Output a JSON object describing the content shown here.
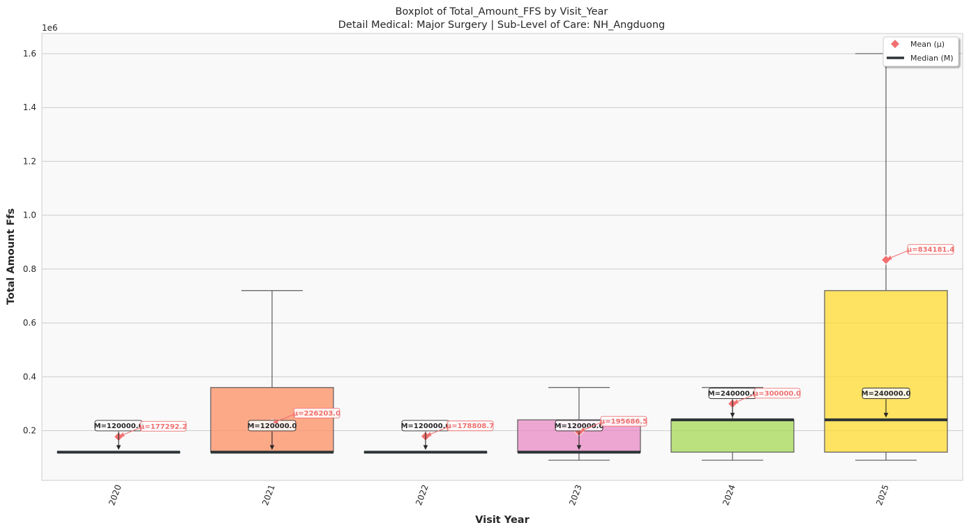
{
  "chart_data": {
    "type": "box",
    "title": "Boxplot of Total_Amount_FFS by Visit_Year",
    "subtitle": "Detail Medical: Major Surgery | Sub-Level of Care: NH_Angduong",
    "xlabel": "Visit Year",
    "ylabel": "Total Amount Ffs",
    "y_offset_label": "1e6",
    "ylim": [
      0.015,
      1.675
    ],
    "yticks": [
      0.2,
      0.4,
      0.6,
      0.8,
      1.0,
      1.2,
      1.4,
      1.6
    ],
    "yticklabels": [
      "0.2",
      "0.4",
      "0.6",
      "0.8",
      "1.0",
      "1.2",
      "1.4",
      "1.6"
    ],
    "grid": true,
    "legend_position": "top-right",
    "legend": [
      {
        "label": "Mean (μ)",
        "marker": "diamond",
        "color": "#f07070"
      },
      {
        "label": "Median (M)",
        "marker": "line",
        "color": "#2d3436"
      }
    ],
    "colors": {
      "background": "#f9f9f9",
      "grid": "#cccccc",
      "whisker": "#5a5a5a",
      "median": "#2d3436",
      "mean": "#f07070"
    },
    "boxes": [
      {
        "category": "2020",
        "whislo": 0.12,
        "q1": 0.12,
        "median": 0.12,
        "q3": 0.12,
        "whishi": 0.12,
        "mean": 0.1772922,
        "color": "#66c2a5",
        "median_label": "M=120000.0",
        "mean_label": "μ=177292.2"
      },
      {
        "category": "2021",
        "whislo": 0.12,
        "q1": 0.12,
        "median": 0.12,
        "q3": 0.36,
        "whishi": 0.72,
        "mean": 0.226203,
        "color": "#fc8d62",
        "median_label": "M=120000.0",
        "mean_label": "μ=226203.0"
      },
      {
        "category": "2022",
        "whislo": 0.12,
        "q1": 0.12,
        "median": 0.12,
        "q3": 0.12,
        "whishi": 0.12,
        "mean": 0.1788087,
        "color": "#8da0cb",
        "median_label": "M=120000.0",
        "mean_label": "μ=178808.7"
      },
      {
        "category": "2023",
        "whislo": 0.09,
        "q1": 0.12,
        "median": 0.12,
        "q3": 0.24,
        "whishi": 0.36,
        "mean": 0.1956865,
        "color": "#e78ac3",
        "median_label": "M=120000.0",
        "mean_label": "μ=195686.5"
      },
      {
        "category": "2024",
        "whislo": 0.09,
        "q1": 0.12,
        "median": 0.24,
        "q3": 0.24,
        "whishi": 0.36,
        "mean": 0.3,
        "color": "#a6d854",
        "median_label": "M=240000.0",
        "mean_label": "μ=300000.0"
      },
      {
        "category": "2025",
        "whislo": 0.09,
        "q1": 0.12,
        "median": 0.24,
        "q3": 0.72,
        "whishi": 1.6,
        "mean": 0.8341814,
        "color": "#ffd92f",
        "median_label": "M=240000.0",
        "mean_label": "μ=834181.4"
      }
    ]
  }
}
